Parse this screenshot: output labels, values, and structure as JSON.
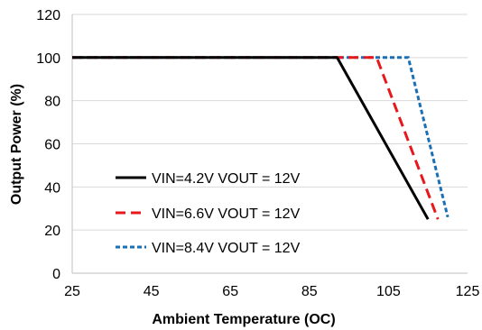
{
  "chart_data": {
    "type": "line",
    "title": "",
    "xlabel": "Ambient Temperature (OC)",
    "ylabel": "Output Power (%)",
    "xlim": [
      25,
      125
    ],
    "ylim": [
      0,
      120
    ],
    "x_ticks": [
      25,
      45,
      65,
      85,
      105,
      125
    ],
    "y_ticks": [
      0,
      20,
      40,
      60,
      80,
      100,
      120
    ],
    "x_tick_labels": [
      "25",
      "45",
      "65",
      "85",
      "105",
      "125"
    ],
    "y_tick_labels": [
      "0",
      "20",
      "40",
      "60",
      "80",
      "100",
      "120"
    ],
    "grid": "horizontal",
    "legend_position": "lower-left",
    "series": [
      {
        "name": "VIN=4.2V VOUT = 12V",
        "color": "#000000",
        "dash": "solid",
        "points": [
          [
            25,
            100
          ],
          [
            92,
            100
          ],
          [
            115,
            25
          ]
        ]
      },
      {
        "name": "VIN=6.6V VOUT = 12V",
        "color": "#e8171b",
        "dash": "dashed",
        "points": [
          [
            25,
            100
          ],
          [
            102,
            100
          ],
          [
            117.5,
            25
          ]
        ]
      },
      {
        "name": "VIN=8.4V VOUT = 12V",
        "color": "#1a6fb5",
        "dash": "dotted",
        "points": [
          [
            25,
            100
          ],
          [
            110,
            100
          ],
          [
            120,
            26
          ]
        ]
      }
    ]
  }
}
